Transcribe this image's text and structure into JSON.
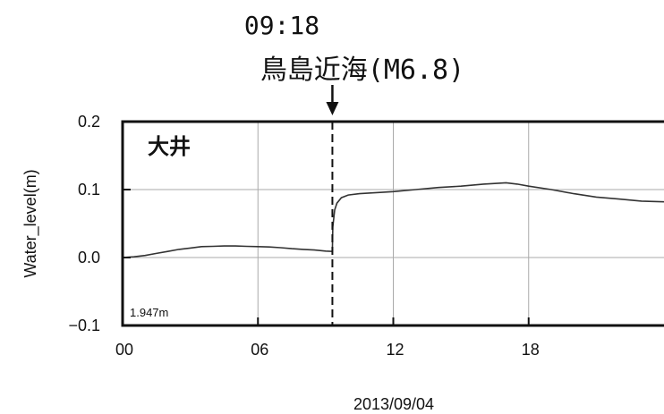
{
  "event": {
    "time_label": "09:18",
    "name_label": "鳥島近海(M6.8)"
  },
  "station": {
    "name": "大井",
    "reference_level": "1.947m"
  },
  "chart_data": {
    "type": "line",
    "title": "",
    "xlabel": "2013/09/04",
    "ylabel": "Water_level(m)",
    "x_unit": "hour",
    "xlim": [
      0,
      24
    ],
    "ylim": [
      -0.1,
      0.2
    ],
    "x_ticks": [
      0,
      6,
      12,
      18
    ],
    "x_tick_labels": [
      "00",
      "06",
      "12",
      "18"
    ],
    "y_ticks": [
      -0.1,
      0.0,
      0.1,
      0.2
    ],
    "y_tick_labels": [
      "−0.1",
      "0.0",
      "0.1",
      "0.2"
    ],
    "grid": true,
    "event_marker_x": 9.3,
    "series": [
      {
        "x": [
          0,
          0.5,
          1,
          1.5,
          2,
          2.5,
          3,
          3.5,
          4,
          4.5,
          5,
          5.5,
          6,
          6.5,
          7,
          7.5,
          8,
          8.5,
          9,
          9.3,
          9.32,
          9.4,
          9.5,
          9.7,
          10,
          10.5,
          11,
          12,
          13,
          14,
          15,
          16,
          16.5,
          17,
          17.5,
          18,
          19,
          20,
          21,
          22,
          23,
          24
        ],
        "y": [
          0.0,
          0.001,
          0.003,
          0.006,
          0.009,
          0.012,
          0.014,
          0.016,
          0.0165,
          0.017,
          0.017,
          0.0165,
          0.016,
          0.0155,
          0.0145,
          0.013,
          0.012,
          0.011,
          0.0095,
          0.009,
          0.045,
          0.07,
          0.08,
          0.088,
          0.092,
          0.094,
          0.095,
          0.097,
          0.1,
          0.103,
          0.105,
          0.108,
          0.109,
          0.11,
          0.108,
          0.105,
          0.1,
          0.094,
          0.089,
          0.086,
          0.083,
          0.082
        ]
      }
    ]
  }
}
